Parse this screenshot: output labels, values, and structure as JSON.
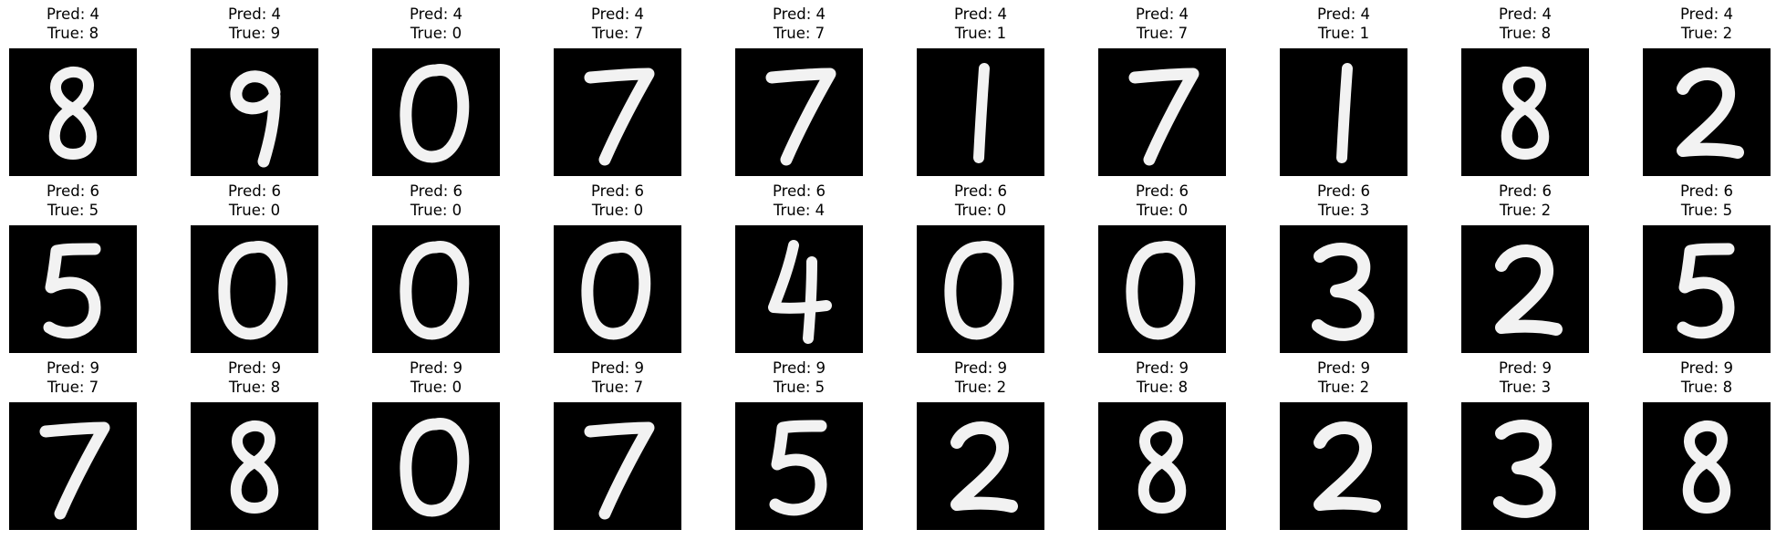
{
  "figure": {
    "panels": [
      {
        "pred": "Pred: 4",
        "true": "True: 8",
        "digit": "8"
      },
      {
        "pred": "Pred: 4",
        "true": "True: 9",
        "digit": "9"
      },
      {
        "pred": "Pred: 4",
        "true": "True: 0",
        "digit": "0"
      },
      {
        "pred": "Pred: 4",
        "true": "True: 7",
        "digit": "7"
      },
      {
        "pred": "Pred: 4",
        "true": "True: 7",
        "digit": "7"
      },
      {
        "pred": "Pred: 4",
        "true": "True: 1",
        "digit": "1"
      },
      {
        "pred": "Pred: 4",
        "true": "True: 7",
        "digit": "7"
      },
      {
        "pred": "Pred: 4",
        "true": "True: 1",
        "digit": "1"
      },
      {
        "pred": "Pred: 4",
        "true": "True: 8",
        "digit": "8"
      },
      {
        "pred": "Pred: 4",
        "true": "True: 2",
        "digit": "2"
      },
      {
        "pred": "Pred: 6",
        "true": "True: 5",
        "digit": "5"
      },
      {
        "pred": "Pred: 6",
        "true": "True: 0",
        "digit": "0"
      },
      {
        "pred": "Pred: 6",
        "true": "True: 0",
        "digit": "0"
      },
      {
        "pred": "Pred: 6",
        "true": "True: 0",
        "digit": "0"
      },
      {
        "pred": "Pred: 6",
        "true": "True: 4",
        "digit": "4"
      },
      {
        "pred": "Pred: 6",
        "true": "True: 0",
        "digit": "0"
      },
      {
        "pred": "Pred: 6",
        "true": "True: 0",
        "digit": "0"
      },
      {
        "pred": "Pred: 6",
        "true": "True: 3",
        "digit": "3"
      },
      {
        "pred": "Pred: 6",
        "true": "True: 2",
        "digit": "2"
      },
      {
        "pred": "Pred: 6",
        "true": "True: 5",
        "digit": "5"
      },
      {
        "pred": "Pred: 9",
        "true": "True: 7",
        "digit": "7"
      },
      {
        "pred": "Pred: 9",
        "true": "True: 8",
        "digit": "8"
      },
      {
        "pred": "Pred: 9",
        "true": "True: 0",
        "digit": "0"
      },
      {
        "pred": "Pred: 9",
        "true": "True: 7",
        "digit": "7"
      },
      {
        "pred": "Pred: 9",
        "true": "True: 5",
        "digit": "5"
      },
      {
        "pred": "Pred: 9",
        "true": "True: 2",
        "digit": "2"
      },
      {
        "pred": "Pred: 9",
        "true": "True: 8",
        "digit": "8"
      },
      {
        "pred": "Pred: 9",
        "true": "True: 2",
        "digit": "2"
      },
      {
        "pred": "Pred: 9",
        "true": "True: 3",
        "digit": "3"
      },
      {
        "pred": "Pred: 9",
        "true": "True: 8",
        "digit": "8"
      }
    ]
  }
}
